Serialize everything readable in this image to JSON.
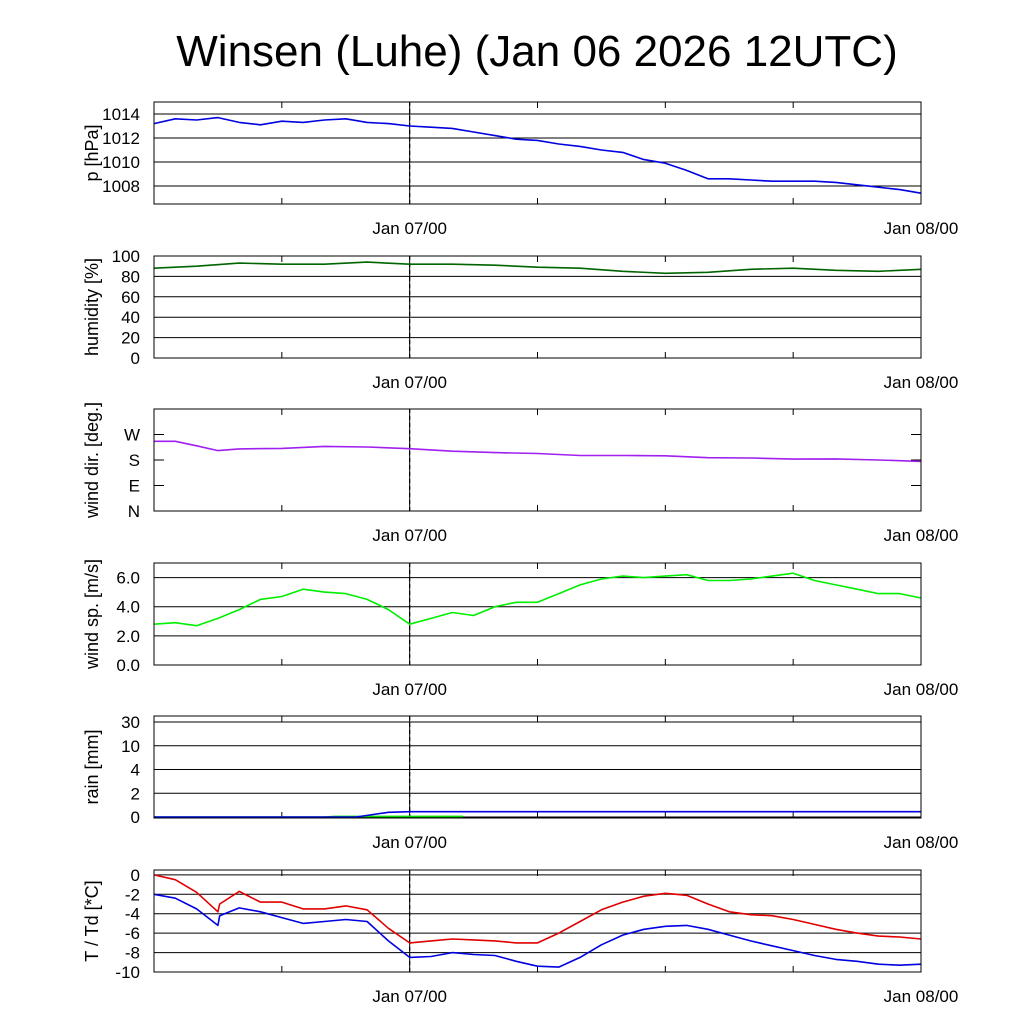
{
  "title": "Winsen (Luhe) (Jan 06 2026 12UTC)",
  "time_axis": {
    "start": "2026-01-06T12:00Z",
    "end": "2026-01-08T00:00Z",
    "tick_labels": [
      "Jan 07/00",
      "Jan 08/00"
    ],
    "tick_times": [
      "2026-01-07T00:00Z",
      "2026-01-08T00:00Z"
    ],
    "minor_ticks": [
      "2026-01-06T18:00Z",
      "2026-01-07T06:00Z",
      "2026-01-07T12:00Z",
      "2026-01-07T18:00Z"
    ],
    "now_marker": "2026-01-07T00:00Z"
  },
  "chart_data": [
    {
      "type": "line",
      "ylabel": "p [hPa]",
      "ylim": [
        1006.5,
        1015
      ],
      "yticks": [
        1008,
        1010,
        1012,
        1014
      ],
      "ytick_labels": [
        "1008",
        "1010",
        "1012",
        "1014"
      ],
      "grid": true,
      "series": [
        {
          "color": "#0000e0",
          "x": [
            "2026-01-06T12:00Z",
            "2026-01-06T13:00Z",
            "2026-01-06T14:00Z",
            "2026-01-06T15:00Z",
            "2026-01-06T16:00Z",
            "2026-01-06T17:00Z",
            "2026-01-06T18:00Z",
            "2026-01-06T19:00Z",
            "2026-01-06T20:00Z",
            "2026-01-06T21:00Z",
            "2026-01-06T22:00Z",
            "2026-01-06T23:00Z",
            "2026-01-07T00:00Z",
            "2026-01-07T01:00Z",
            "2026-01-07T02:00Z",
            "2026-01-07T03:00Z",
            "2026-01-07T04:00Z",
            "2026-01-07T05:00Z",
            "2026-01-07T06:00Z",
            "2026-01-07T07:00Z",
            "2026-01-07T08:00Z",
            "2026-01-07T09:00Z",
            "2026-01-07T10:00Z",
            "2026-01-07T11:00Z",
            "2026-01-07T12:00Z",
            "2026-01-07T13:00Z",
            "2026-01-07T14:00Z",
            "2026-01-07T15:00Z",
            "2026-01-07T16:00Z",
            "2026-01-07T17:00Z",
            "2026-01-07T18:00Z",
            "2026-01-07T19:00Z",
            "2026-01-07T20:00Z",
            "2026-01-07T21:00Z",
            "2026-01-07T22:00Z",
            "2026-01-07T23:00Z",
            "2026-01-08T00:00Z"
          ],
          "values": [
            1013.2,
            1013.6,
            1013.5,
            1013.7,
            1013.3,
            1013.1,
            1013.4,
            1013.3,
            1013.5,
            1013.6,
            1013.3,
            1013.2,
            1013.0,
            1012.9,
            1012.8,
            1012.5,
            1012.2,
            1011.9,
            1011.8,
            1011.5,
            1011.3,
            1011.0,
            1010.8,
            1010.2,
            1009.9,
            1009.3,
            1008.6,
            1008.6,
            1008.5,
            1008.4,
            1008.4,
            1008.4,
            1008.3,
            1008.1,
            1007.9,
            1007.7,
            1007.4
          ]
        }
      ]
    },
    {
      "type": "line",
      "ylabel": "humidity [%]",
      "ylim": [
        0,
        100
      ],
      "yticks": [
        0,
        20,
        40,
        60,
        80,
        100
      ],
      "ytick_labels": [
        "0",
        "20",
        "40",
        "60",
        "80",
        "100"
      ],
      "grid": true,
      "series": [
        {
          "color": "#006400",
          "x": [
            "2026-01-06T12:00Z",
            "2026-01-06T14:00Z",
            "2026-01-06T16:00Z",
            "2026-01-06T18:00Z",
            "2026-01-06T20:00Z",
            "2026-01-06T22:00Z",
            "2026-01-07T00:00Z",
            "2026-01-07T02:00Z",
            "2026-01-07T04:00Z",
            "2026-01-07T06:00Z",
            "2026-01-07T08:00Z",
            "2026-01-07T10:00Z",
            "2026-01-07T12:00Z",
            "2026-01-07T14:00Z",
            "2026-01-07T16:00Z",
            "2026-01-07T18:00Z",
            "2026-01-07T20:00Z",
            "2026-01-07T22:00Z",
            "2026-01-08T00:00Z"
          ],
          "values": [
            88,
            90,
            93,
            92,
            92,
            94,
            92,
            92,
            91,
            89,
            88,
            85,
            83,
            84,
            87,
            88,
            86,
            85,
            87
          ]
        }
      ]
    },
    {
      "type": "line",
      "ylabel": "wind dir. [deg.]",
      "ylim": [
        0,
        360
      ],
      "yticks": [
        0,
        90,
        180,
        270
      ],
      "ytick_labels": [
        "N",
        "E",
        "S",
        "W"
      ],
      "grid": false,
      "series": [
        {
          "color": "#a020f0",
          "x": [
            "2026-01-06T12:00Z",
            "2026-01-06T13:00Z",
            "2026-01-06T14:00Z",
            "2026-01-06T15:00Z",
            "2026-01-06T16:00Z",
            "2026-01-06T18:00Z",
            "2026-01-06T20:00Z",
            "2026-01-06T22:00Z",
            "2026-01-07T00:00Z",
            "2026-01-07T02:00Z",
            "2026-01-07T04:00Z",
            "2026-01-07T06:00Z",
            "2026-01-07T08:00Z",
            "2026-01-07T10:00Z",
            "2026-01-07T12:00Z",
            "2026-01-07T14:00Z",
            "2026-01-07T16:00Z",
            "2026-01-07T18:00Z",
            "2026-01-07T20:00Z",
            "2026-01-07T22:00Z",
            "2026-01-08T00:00Z"
          ],
          "values": [
            246,
            246,
            230,
            213,
            219,
            221,
            228,
            226,
            220,
            211,
            206,
            203,
            196,
            196,
            195,
            188,
            187,
            183,
            184,
            180,
            175
          ]
        }
      ]
    },
    {
      "type": "line",
      "ylabel": "wind sp. [m/s]",
      "ylim": [
        0,
        7
      ],
      "yticks": [
        0,
        2,
        4,
        6
      ],
      "ytick_labels": [
        "0.0",
        "2.0",
        "4.0",
        "6.0"
      ],
      "grid": true,
      "series": [
        {
          "color": "#00ee00",
          "x": [
            "2026-01-06T12:00Z",
            "2026-01-06T13:00Z",
            "2026-01-06T14:00Z",
            "2026-01-06T15:00Z",
            "2026-01-06T16:00Z",
            "2026-01-06T17:00Z",
            "2026-01-06T18:00Z",
            "2026-01-06T19:00Z",
            "2026-01-06T20:00Z",
            "2026-01-06T21:00Z",
            "2026-01-06T22:00Z",
            "2026-01-06T23:00Z",
            "2026-01-07T00:00Z",
            "2026-01-07T01:00Z",
            "2026-01-07T02:00Z",
            "2026-01-07T03:00Z",
            "2026-01-07T04:00Z",
            "2026-01-07T05:00Z",
            "2026-01-07T06:00Z",
            "2026-01-07T07:00Z",
            "2026-01-07T08:00Z",
            "2026-01-07T09:00Z",
            "2026-01-07T10:00Z",
            "2026-01-07T11:00Z",
            "2026-01-07T12:00Z",
            "2026-01-07T13:00Z",
            "2026-01-07T14:00Z",
            "2026-01-07T15:00Z",
            "2026-01-07T16:00Z",
            "2026-01-07T17:00Z",
            "2026-01-07T18:00Z",
            "2026-01-07T19:00Z",
            "2026-01-07T20:00Z",
            "2026-01-07T21:00Z",
            "2026-01-07T22:00Z",
            "2026-01-07T23:00Z",
            "2026-01-08T00:00Z"
          ],
          "values": [
            2.8,
            2.9,
            2.7,
            3.2,
            3.8,
            4.5,
            4.7,
            5.2,
            5.0,
            4.9,
            4.5,
            3.8,
            2.8,
            3.2,
            3.6,
            3.4,
            4.0,
            4.3,
            4.3,
            4.9,
            5.5,
            5.9,
            6.1,
            6.0,
            6.1,
            6.2,
            5.8,
            5.8,
            5.9,
            6.1,
            6.3,
            5.8,
            5.5,
            5.2,
            4.9,
            4.9,
            4.6
          ]
        }
      ]
    },
    {
      "type": "line",
      "ylabel": "rain [mm]",
      "ylim": [
        0,
        30
      ],
      "yticks": [
        0,
        2,
        4,
        10,
        30
      ],
      "ytick_labels": [
        "0",
        "2",
        "4",
        "10",
        "30"
      ],
      "grid": true,
      "series": [
        {
          "color": "#00dd00",
          "x": [
            "2026-01-06T12:00Z",
            "2026-01-06T20:00Z",
            "2026-01-06T20:30Z",
            "2026-01-07T02:30Z"
          ],
          "values": [
            0,
            0,
            0.05,
            0.05
          ]
        },
        {
          "color": "#0000e0",
          "x": [
            "2026-01-06T12:00Z",
            "2026-01-06T21:30Z",
            "2026-01-06T23:00Z",
            "2026-01-07T00:00Z",
            "2026-01-08T00:00Z"
          ],
          "values": [
            0,
            0,
            0.4,
            0.45,
            0.45
          ]
        }
      ]
    },
    {
      "type": "line",
      "ylabel": "T / Td [*C]",
      "ylim": [
        -10,
        0.5
      ],
      "yticks": [
        -10,
        -8,
        -6,
        -4,
        -2,
        0
      ],
      "ytick_labels": [
        "-10",
        "-8",
        "-6",
        "-4",
        "-2",
        "0"
      ],
      "grid": true,
      "series": [
        {
          "color": "#e00000",
          "x": [
            "2026-01-06T12:00Z",
            "2026-01-06T13:00Z",
            "2026-01-06T14:00Z",
            "2026-01-06T15:00Z",
            "2026-01-06T15:05Z",
            "2026-01-06T16:00Z",
            "2026-01-06T17:00Z",
            "2026-01-06T18:00Z",
            "2026-01-06T19:00Z",
            "2026-01-06T20:00Z",
            "2026-01-06T21:00Z",
            "2026-01-06T22:00Z",
            "2026-01-06T23:00Z",
            "2026-01-07T00:00Z",
            "2026-01-07T01:00Z",
            "2026-01-07T02:00Z",
            "2026-01-07T03:00Z",
            "2026-01-07T04:00Z",
            "2026-01-07T05:00Z",
            "2026-01-07T06:00Z",
            "2026-01-07T07:00Z",
            "2026-01-07T08:00Z",
            "2026-01-07T09:00Z",
            "2026-01-07T10:00Z",
            "2026-01-07T11:00Z",
            "2026-01-07T12:00Z",
            "2026-01-07T13:00Z",
            "2026-01-07T14:00Z",
            "2026-01-07T15:00Z",
            "2026-01-07T16:00Z",
            "2026-01-07T17:00Z",
            "2026-01-07T18:00Z",
            "2026-01-07T19:00Z",
            "2026-01-07T20:00Z",
            "2026-01-07T21:00Z",
            "2026-01-07T22:00Z",
            "2026-01-07T23:00Z",
            "2026-01-08T00:00Z"
          ],
          "values": [
            0,
            -0.5,
            -1.8,
            -3.8,
            -3.0,
            -1.7,
            -2.8,
            -2.8,
            -3.5,
            -3.5,
            -3.2,
            -3.6,
            -5.5,
            -7.0,
            -6.8,
            -6.6,
            -6.7,
            -6.8,
            -7.0,
            -7.0,
            -6.0,
            -4.8,
            -3.6,
            -2.8,
            -2.2,
            -1.9,
            -2.1,
            -3.0,
            -3.8,
            -4.1,
            -4.2,
            -4.6,
            -5.1,
            -5.6,
            -6.0,
            -6.3,
            -6.4,
            -6.6
          ]
        },
        {
          "color": "#0000e0",
          "x": [
            "2026-01-06T12:00Z",
            "2026-01-06T13:00Z",
            "2026-01-06T14:00Z",
            "2026-01-06T15:00Z",
            "2026-01-06T15:05Z",
            "2026-01-06T16:00Z",
            "2026-01-06T17:00Z",
            "2026-01-06T18:00Z",
            "2026-01-06T19:00Z",
            "2026-01-06T20:00Z",
            "2026-01-06T21:00Z",
            "2026-01-06T22:00Z",
            "2026-01-06T23:00Z",
            "2026-01-07T00:00Z",
            "2026-01-07T01:00Z",
            "2026-01-07T02:00Z",
            "2026-01-07T03:00Z",
            "2026-01-07T04:00Z",
            "2026-01-07T05:00Z",
            "2026-01-07T06:00Z",
            "2026-01-07T07:00Z",
            "2026-01-07T08:00Z",
            "2026-01-07T09:00Z",
            "2026-01-07T10:00Z",
            "2026-01-07T11:00Z",
            "2026-01-07T12:00Z",
            "2026-01-07T13:00Z",
            "2026-01-07T14:00Z",
            "2026-01-07T15:00Z",
            "2026-01-07T16:00Z",
            "2026-01-07T17:00Z",
            "2026-01-07T18:00Z",
            "2026-01-07T19:00Z",
            "2026-01-07T20:00Z",
            "2026-01-07T21:00Z",
            "2026-01-07T22:00Z",
            "2026-01-07T23:00Z",
            "2026-01-08T00:00Z"
          ],
          "values": [
            -2.0,
            -2.4,
            -3.5,
            -5.2,
            -4.2,
            -3.4,
            -3.8,
            -4.4,
            -5.0,
            -4.8,
            -4.6,
            -4.8,
            -6.8,
            -8.5,
            -8.4,
            -8.0,
            -8.2,
            -8.3,
            -8.9,
            -9.4,
            -9.5,
            -8.5,
            -7.2,
            -6.2,
            -5.6,
            -5.3,
            -5.2,
            -5.6,
            -6.2,
            -6.8,
            -7.3,
            -7.8,
            -8.3,
            -8.7,
            -8.9,
            -9.2,
            -9.3,
            -9.2
          ]
        }
      ]
    }
  ]
}
